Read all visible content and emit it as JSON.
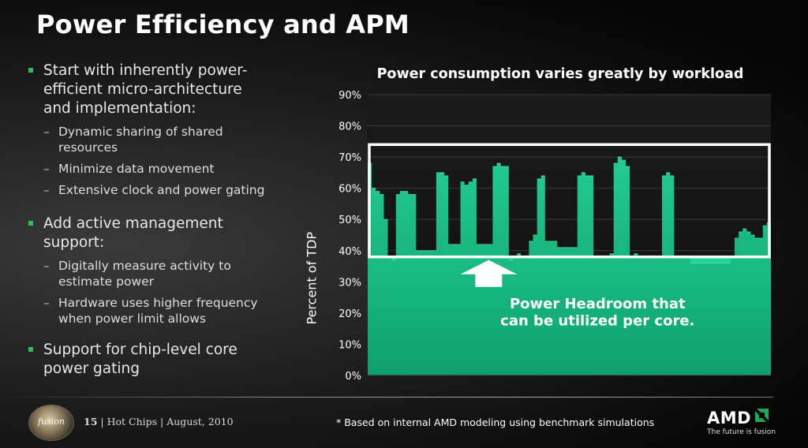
{
  "slide": {
    "title": "Power Efficiency and APM"
  },
  "bullets": [
    {
      "text": "Start with inherently power-efficient micro-architecture and implementation:",
      "line1": "Start with inherently power-",
      "line2": "efficient micro-architecture",
      "line3": "and implementation:",
      "subs": [
        {
          "line1": "Dynamic sharing of shared",
          "line2": "resources"
        },
        {
          "line1": "Minimize data movement"
        },
        {
          "line1": "Extensive clock and power gating"
        }
      ]
    },
    {
      "line1": "Add active management",
      "line2": "support:",
      "subs": [
        {
          "line1": "Digitally measure activity to",
          "line2": "estimate power"
        },
        {
          "line1": "Hardware uses higher frequency",
          "line2": "when power limit allows"
        }
      ]
    },
    {
      "line1": "Support for chip-level core",
      "line2": "power gating"
    }
  ],
  "chart_data": {
    "type": "area",
    "title": "Power consumption varies greatly by workload",
    "ylabel": "Percent of TDP",
    "ylim": [
      0,
      90
    ],
    "yticks": [
      "0%",
      "10%",
      "20%",
      "30%",
      "40%",
      "50%",
      "60%",
      "70%",
      "80%",
      "90%"
    ],
    "ytick_values": [
      0,
      10,
      20,
      30,
      40,
      50,
      60,
      70,
      80,
      90
    ],
    "series": [
      {
        "name": "Power",
        "x": [
          0,
          1,
          2,
          3,
          4,
          5,
          6,
          7,
          8,
          9,
          10,
          11,
          12,
          13,
          14,
          15,
          16,
          17,
          18,
          19,
          20,
          21,
          22,
          23,
          24,
          25,
          26,
          27,
          28,
          29,
          30,
          31,
          32,
          33,
          34,
          35,
          36,
          37,
          38,
          39,
          40,
          41,
          42,
          43,
          44,
          45,
          46,
          47,
          48,
          49,
          50,
          51,
          52,
          53,
          54,
          55,
          56,
          57,
          58,
          59,
          60,
          61,
          62,
          63,
          64,
          65,
          66,
          67,
          68,
          69,
          70,
          71,
          72,
          73,
          74,
          75,
          76,
          77,
          78,
          79,
          80,
          81,
          82,
          83,
          84,
          85,
          86,
          87,
          88,
          89,
          90,
          91,
          92,
          93,
          94,
          95,
          96,
          97,
          98,
          99,
          100
        ],
        "values": [
          68,
          60,
          59,
          58,
          50,
          38,
          37,
          58,
          59,
          59,
          58,
          58,
          40,
          40,
          40,
          40,
          40,
          65,
          65,
          64,
          42,
          42,
          42,
          62,
          61,
          62,
          63,
          42,
          42,
          42,
          42,
          67,
          68,
          67,
          67,
          37,
          38,
          39,
          38,
          38,
          43,
          45,
          63,
          64,
          43,
          43,
          43,
          41,
          41,
          41,
          41,
          41,
          64,
          65,
          64,
          64,
          38,
          38,
          38,
          38,
          39,
          68,
          70,
          69,
          67,
          38,
          39,
          38,
          38,
          38,
          38,
          38,
          38,
          64,
          65,
          64,
          38,
          38,
          38,
          38,
          36,
          36,
          36,
          36,
          36,
          36,
          36,
          36,
          36,
          36,
          38,
          44,
          46,
          47,
          46,
          45,
          44,
          44,
          48,
          49,
          48
        ]
      }
    ],
    "baseline_percent": 38,
    "highlight_box_range": [
      38,
      74
    ],
    "annotation": {
      "line1": "Power Headroom that",
      "line2": "can be utilized per core."
    }
  },
  "footer": {
    "logo_text": "fusion",
    "page_number": "15",
    "venue": "Hot Chips",
    "date": "August, 2010",
    "separator": "|",
    "footnote": "* Based on internal AMD modeling using benchmark simulations",
    "brand": "AMD",
    "tagline": "The future is fusion"
  },
  "colors": {
    "accent": "#2fbf5a",
    "area": "#1fcf8f",
    "area_dark": "#0e9f6c"
  }
}
